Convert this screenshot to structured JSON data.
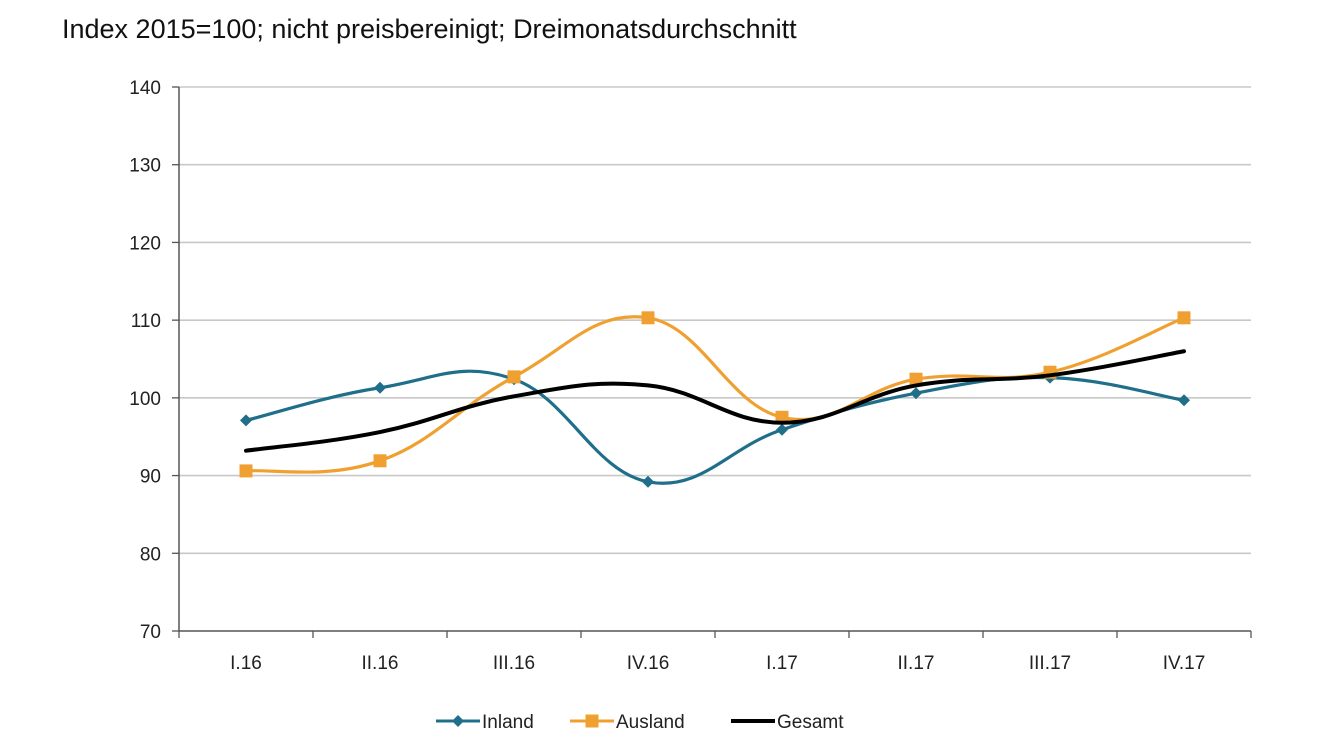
{
  "title": "Index 2015=100; nicht preisbereinigt; Dreimonatsdurchschnitt",
  "chart_data": {
    "type": "line",
    "categories": [
      "I.16",
      "II.16",
      "III.16",
      "IV.16",
      "I.17",
      "II.17",
      "III.17",
      "IV.17"
    ],
    "ylim": [
      70,
      140
    ],
    "yticks": [
      70,
      80,
      90,
      100,
      110,
      120,
      130,
      140
    ],
    "grid": true,
    "legend_position": "bottom",
    "series": [
      {
        "name": "Inland",
        "color": "#1f6f8b",
        "marker": "diamond",
        "values": [
          97.1,
          101.3,
          102.4,
          89.2,
          95.9,
          100.6,
          102.6,
          99.7
        ]
      },
      {
        "name": "Ausland",
        "color": "#f0a030",
        "marker": "square",
        "values": [
          90.6,
          91.9,
          102.7,
          110.3,
          97.5,
          102.4,
          103.3,
          110.3
        ]
      },
      {
        "name": "Gesamt",
        "color": "#000000",
        "marker": "none",
        "values": [
          93.2,
          95.6,
          100.2,
          101.6,
          96.8,
          101.6,
          102.9,
          106.0
        ]
      }
    ]
  }
}
